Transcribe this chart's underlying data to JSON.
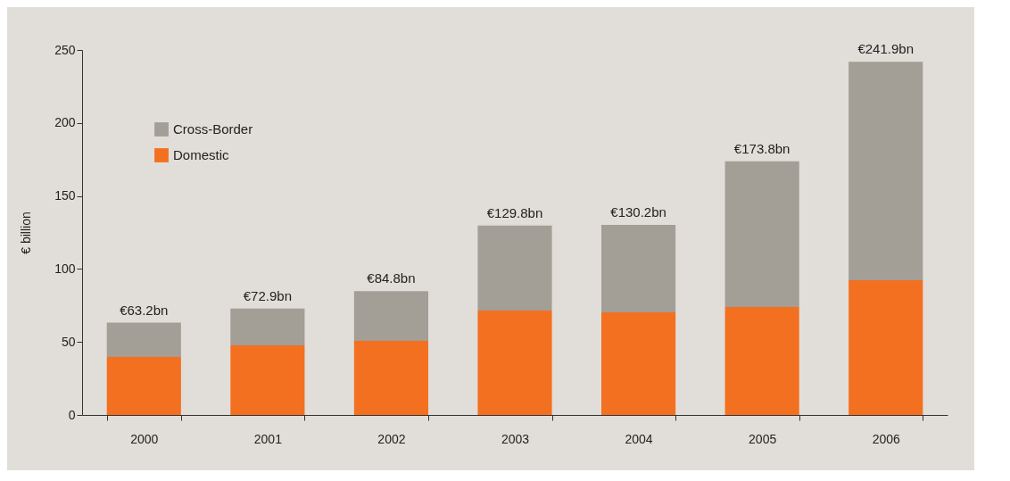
{
  "chart_data": {
    "type": "bar",
    "ylabel": "€ billion",
    "categories": [
      "2000",
      "2001",
      "2002",
      "2003",
      "2004",
      "2005",
      "2006"
    ],
    "series": [
      {
        "name": "Domestic",
        "color": "#f37021",
        "values": [
          39.7,
          47.7,
          50.7,
          71.5,
          70.3,
          74.0,
          92.3
        ]
      },
      {
        "name": "Cross-Border",
        "color": "#a39e96",
        "values": [
          23.5,
          25.2,
          34.1,
          58.3,
          59.9,
          99.8,
          149.6
        ]
      }
    ],
    "stacked": true,
    "totals": [
      "€63.2bn",
      "€72.9bn",
      "€84.8bn",
      "€129.8bn",
      "€130.2bn",
      "€173.8bn",
      "€241.9bn"
    ],
    "ylim": [
      0,
      250
    ],
    "yticks": [
      0,
      50,
      100,
      150,
      200,
      250
    ],
    "legend": "top left"
  }
}
